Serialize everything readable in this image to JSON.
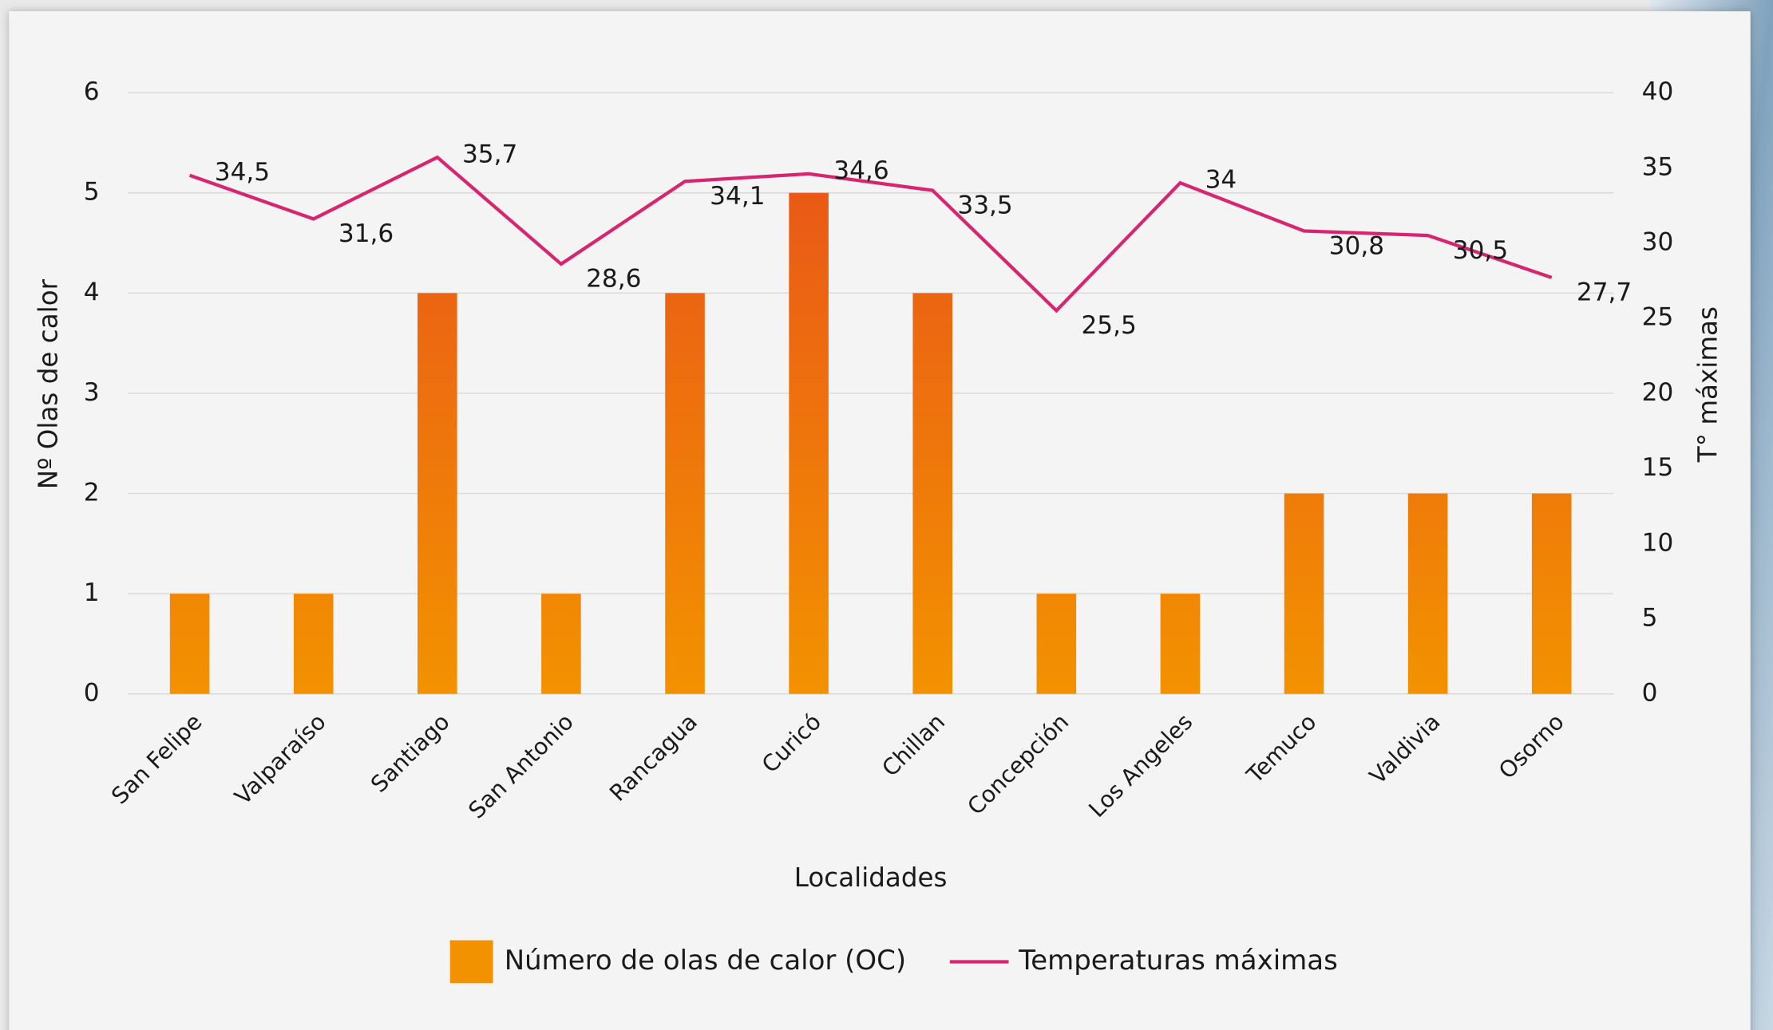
{
  "chart_data": {
    "type": "bar_line",
    "x_label": "Localidades",
    "y_label": "Nº Olas de calor",
    "y2_label": "T° máximas",
    "categories": [
      "San Felipe",
      "Valparaíso",
      "Santiago",
      "San Antonio",
      "Rancagua",
      "Curicó",
      "Chillan",
      "Concepción",
      "Los Angeles",
      "Temuco",
      "Valdivia",
      "Osorno"
    ],
    "series": [
      {
        "name": "Número de olas de calor (OC)",
        "type": "bar",
        "color": [
          "#e84e1b",
          "#f39200"
        ],
        "values": [
          1,
          1,
          4,
          1,
          4,
          5,
          4,
          1,
          1,
          2,
          2,
          2
        ]
      },
      {
        "name": "Temperaturas máximas",
        "type": "line",
        "axis": "y2",
        "color": "#d9256f",
        "values": [
          34.5,
          31.6,
          35.7,
          28.6,
          34.1,
          34.6,
          33.5,
          25.5,
          34,
          30.8,
          30.5,
          27.7
        ],
        "value_labels": [
          "34,5",
          "31,6",
          "35,7",
          "28,6",
          "34,1",
          "34,6",
          "33,5",
          "25,5",
          "34",
          "30,8",
          "30,5",
          "27,7"
        ]
      }
    ],
    "ylim": [
      0,
      6
    ],
    "yticks": [
      0,
      1,
      2,
      3,
      4,
      5,
      6
    ],
    "y2lim": [
      0,
      40
    ],
    "y2ticks": [
      0,
      5,
      10,
      15,
      20,
      25,
      30,
      35,
      40
    ],
    "grid": true,
    "legend": "bottom"
  }
}
